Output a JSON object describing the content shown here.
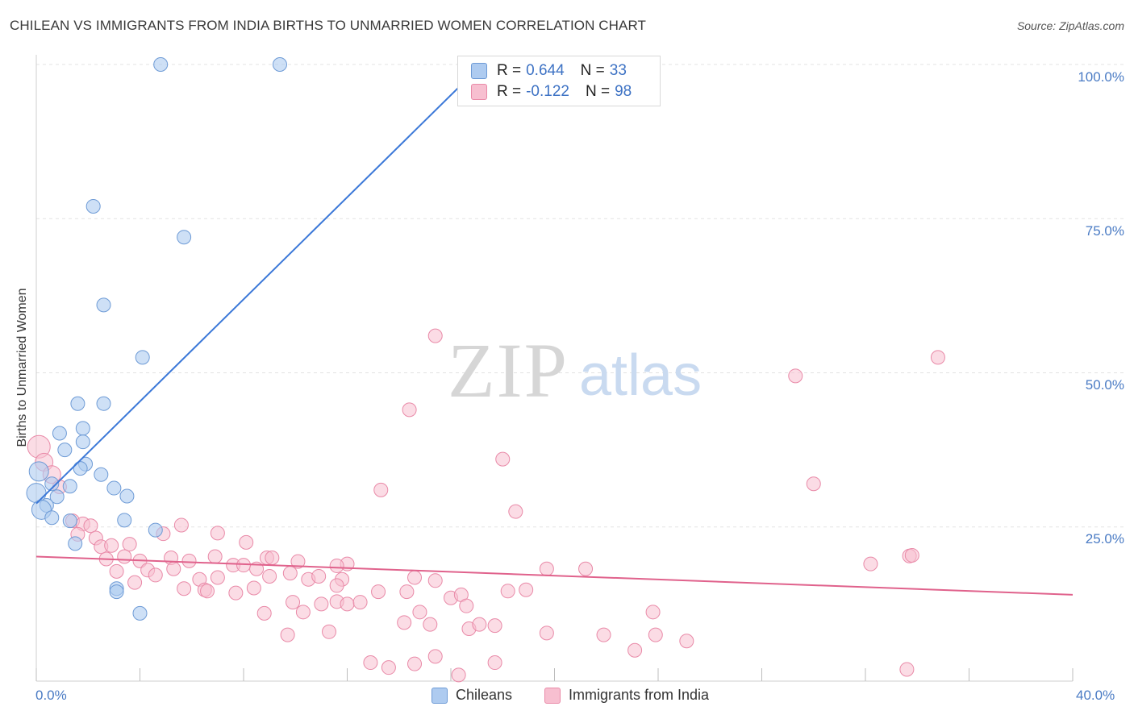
{
  "title": "CHILEAN VS IMMIGRANTS FROM INDIA BIRTHS TO UNMARRIED WOMEN CORRELATION CHART",
  "source": "Source: ZipAtlas.com",
  "watermark": {
    "zip": "ZIP",
    "atlas": "atlas"
  },
  "legend": {
    "r_label": "R =",
    "n_label": "N =",
    "rows": [
      {
        "r": "0.644",
        "n": "33"
      },
      {
        "r": "-0.122",
        "n": "98"
      }
    ]
  },
  "colors": {
    "chileans_fill": "#aecbf0",
    "chileans_stroke": "#6e9bd6",
    "chileans_line": "#3b78d8",
    "india_fill": "#f7bfd0",
    "india_stroke": "#e98aa8",
    "india_line": "#e0628c",
    "tick_text": "#4a7bc4",
    "grid": "#e3e3e3"
  },
  "chart_data": {
    "type": "scatter",
    "title": "CHILEAN VS IMMIGRANTS FROM INDIA BIRTHS TO UNMARRIED WOMEN CORRELATION CHART",
    "xlabel": "",
    "ylabel": "Births to Unmarried Women",
    "xlim": [
      0,
      40
    ],
    "ylim": [
      0,
      100
    ],
    "x_tick_labels": [
      "0.0%",
      "40.0%"
    ],
    "y_tick_labels": [
      "25.0%",
      "50.0%",
      "75.0%",
      "100.0%"
    ],
    "y_ticks": [
      25,
      50,
      75,
      100
    ],
    "grid": true,
    "legend_position": "bottom",
    "series": [
      {
        "name": "Chileans",
        "r": 0.644,
        "n": 33,
        "trend": {
          "x": [
            0.0,
            17.2
          ],
          "y": [
            28.8,
            100.0
          ]
        },
        "points": [
          [
            4.8,
            100.0
          ],
          [
            9.4,
            100.0
          ],
          [
            22.2,
            100.0
          ],
          [
            2.2,
            77.0
          ],
          [
            5.7,
            72.0
          ],
          [
            2.6,
            61.0
          ],
          [
            4.1,
            52.5
          ],
          [
            1.6,
            45.0
          ],
          [
            2.6,
            45.0
          ],
          [
            1.8,
            41.0
          ],
          [
            0.9,
            40.2
          ],
          [
            1.8,
            38.8
          ],
          [
            1.1,
            37.5
          ],
          [
            0.1,
            34.0
          ],
          [
            1.9,
            35.2
          ],
          [
            1.7,
            34.5
          ],
          [
            2.5,
            33.5
          ],
          [
            0.6,
            32.0
          ],
          [
            1.3,
            31.6
          ],
          [
            0.0,
            30.5
          ],
          [
            3.0,
            31.3
          ],
          [
            3.5,
            30.0
          ],
          [
            0.8,
            29.9
          ],
          [
            0.4,
            28.5
          ],
          [
            0.2,
            27.8
          ],
          [
            0.6,
            26.5
          ],
          [
            1.3,
            26.0
          ],
          [
            3.4,
            26.1
          ],
          [
            4.6,
            24.5
          ],
          [
            1.5,
            22.3
          ],
          [
            3.1,
            15.0
          ],
          [
            3.1,
            14.5
          ],
          [
            4.0,
            11.0
          ]
        ]
      },
      {
        "name": "Immigrants from India",
        "r": -0.122,
        "n": 98,
        "trend": {
          "x": [
            0.0,
            40.0
          ],
          "y": [
            20.2,
            14.0
          ]
        },
        "points": [
          [
            0.1,
            38.0
          ],
          [
            0.3,
            35.5
          ],
          [
            0.6,
            33.5
          ],
          [
            0.9,
            31.5
          ],
          [
            1.4,
            26.0
          ],
          [
            1.8,
            25.5
          ],
          [
            2.1,
            25.2
          ],
          [
            1.6,
            23.8
          ],
          [
            2.3,
            23.2
          ],
          [
            2.5,
            21.8
          ],
          [
            2.9,
            22.0
          ],
          [
            3.6,
            22.2
          ],
          [
            2.7,
            19.8
          ],
          [
            3.4,
            20.2
          ],
          [
            4.0,
            19.5
          ],
          [
            4.3,
            18.0
          ],
          [
            3.1,
            17.8
          ],
          [
            3.8,
            16.0
          ],
          [
            4.6,
            17.2
          ],
          [
            5.2,
            20.0
          ],
          [
            5.9,
            19.5
          ],
          [
            5.3,
            18.2
          ],
          [
            6.3,
            16.5
          ],
          [
            6.5,
            14.8
          ],
          [
            7.0,
            16.8
          ],
          [
            6.6,
            14.6
          ],
          [
            5.7,
            15.0
          ],
          [
            6.9,
            20.2
          ],
          [
            7.6,
            18.8
          ],
          [
            8.0,
            18.8
          ],
          [
            7.7,
            14.3
          ],
          [
            8.5,
            18.2
          ],
          [
            8.9,
            20.0
          ],
          [
            9.1,
            20.0
          ],
          [
            8.1,
            22.5
          ],
          [
            8.4,
            15.1
          ],
          [
            7.0,
            24.0
          ],
          [
            5.6,
            25.3
          ],
          [
            4.9,
            23.9
          ],
          [
            9.8,
            17.5
          ],
          [
            10.5,
            16.5
          ],
          [
            10.9,
            17.0
          ],
          [
            11.8,
            16.5
          ],
          [
            11.6,
            15.5
          ],
          [
            9.9,
            12.8
          ],
          [
            10.3,
            11.2
          ],
          [
            11.0,
            12.5
          ],
          [
            11.6,
            12.9
          ],
          [
            12.0,
            12.5
          ],
          [
            12.5,
            12.8
          ],
          [
            13.2,
            14.5
          ],
          [
            14.3,
            14.5
          ],
          [
            14.6,
            16.8
          ],
          [
            14.2,
            9.5
          ],
          [
            14.8,
            11.2
          ],
          [
            15.4,
            16.3
          ],
          [
            15.2,
            9.2
          ],
          [
            16.0,
            13.5
          ],
          [
            16.4,
            14.0
          ],
          [
            16.6,
            12.2
          ],
          [
            16.7,
            8.5
          ],
          [
            17.1,
            9.2
          ],
          [
            17.7,
            9.0
          ],
          [
            18.2,
            14.6
          ],
          [
            18.9,
            14.8
          ],
          [
            19.7,
            18.2
          ],
          [
            21.2,
            18.2
          ],
          [
            18.5,
            27.5
          ],
          [
            18.0,
            36.0
          ],
          [
            15.4,
            56.0
          ],
          [
            14.4,
            44.0
          ],
          [
            13.3,
            31.0
          ],
          [
            12.9,
            3.0
          ],
          [
            13.6,
            2.2
          ],
          [
            14.6,
            2.8
          ],
          [
            15.4,
            4.0
          ],
          [
            16.3,
            1.0
          ],
          [
            17.7,
            3.0
          ],
          [
            8.8,
            11.0
          ],
          [
            9.7,
            7.5
          ],
          [
            11.3,
            8.0
          ],
          [
            19.7,
            7.8
          ],
          [
            21.9,
            7.5
          ],
          [
            23.1,
            5.0
          ],
          [
            23.8,
            11.2
          ],
          [
            23.9,
            7.5
          ],
          [
            25.1,
            6.5
          ],
          [
            29.3,
            49.5
          ],
          [
            30.0,
            32.0
          ],
          [
            32.2,
            19.0
          ],
          [
            33.7,
            20.3
          ],
          [
            33.8,
            20.4
          ],
          [
            34.8,
            52.5
          ],
          [
            33.6,
            1.9
          ],
          [
            12.0,
            19.0
          ],
          [
            11.6,
            18.7
          ],
          [
            9.0,
            17.0
          ],
          [
            10.1,
            19.4
          ]
        ]
      }
    ]
  }
}
